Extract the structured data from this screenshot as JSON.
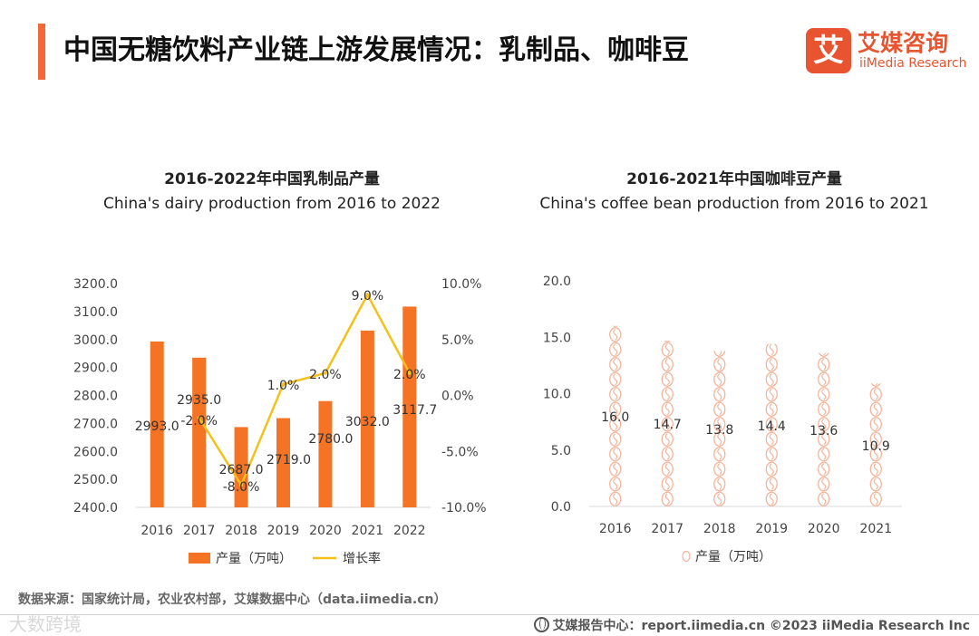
{
  "header": {
    "title": "中国无糖饮料产业链上游发展情况：乳制品、咖啡豆",
    "logo_mark": "艾",
    "logo_name_cn": "艾媒咨询",
    "logo_name_en": "iiMedia Research"
  },
  "colors": {
    "accent": "#f4693a",
    "bar": "#f47325",
    "line": "#f4c11a",
    "bean": "#f2b49a",
    "brand": "#e8542f"
  },
  "chart_data": [
    {
      "type": "bar",
      "title": "2016-2022年中国乳制品产量",
      "subtitle": "China's dairy production from 2016 to 2022",
      "categories": [
        "2016",
        "2017",
        "2018",
        "2019",
        "2020",
        "2021",
        "2022"
      ],
      "series": [
        {
          "name": "产量（万吨）",
          "type": "bar",
          "axis": "left",
          "values": [
            2993.0,
            2935.0,
            2687.0,
            2719.0,
            2780.0,
            3032.0,
            3117.7
          ],
          "labels": [
            "2993.0",
            "2935.0",
            "2687.0",
            "2719.0",
            "2780.0",
            "3032.0",
            "3117.7"
          ]
        },
        {
          "name": "增长率",
          "type": "line",
          "axis": "right",
          "values": [
            null,
            -2.0,
            -8.0,
            1.0,
            2.0,
            9.0,
            2.0
          ],
          "labels": [
            "",
            "-2.0%",
            "-8.0%",
            "1.0%",
            "2.0%",
            "9.0%",
            "2.0%"
          ]
        }
      ],
      "ylim": [
        2400,
        3200
      ],
      "y_ticks": [
        "2400.0",
        "2500.0",
        "2600.0",
        "2700.0",
        "2800.0",
        "2900.0",
        "3000.0",
        "3100.0",
        "3200.0"
      ],
      "y2lim": [
        -10,
        10
      ],
      "y2_ticks": [
        "-10.0%",
        "-5.0%",
        "0.0%",
        "5.0%",
        "10.0%"
      ],
      "legend": [
        "产量（万吨）",
        "增长率"
      ],
      "legend_position": "bottom"
    },
    {
      "type": "bar",
      "title": "2016-2021年中国咖啡豆产量",
      "subtitle": "China's coffee bean production from 2016 to 2021",
      "categories": [
        "2016",
        "2017",
        "2018",
        "2019",
        "2020",
        "2021"
      ],
      "series": [
        {
          "name": "产量（万吨）",
          "values": [
            16.0,
            14.7,
            13.8,
            14.4,
            13.6,
            10.9
          ],
          "labels": [
            "16.0",
            "14.7",
            "13.8",
            "14.4",
            "13.6",
            "10.9"
          ]
        }
      ],
      "ylim": [
        0,
        20
      ],
      "y_ticks": [
        "0.0",
        "5.0",
        "10.0",
        "15.0",
        "20.0"
      ],
      "legend": [
        "产量（万吨）"
      ],
      "legend_position": "bottom",
      "mark_style": "pictograph-coffee-bean"
    }
  ],
  "footer": {
    "source": "数据来源：国家统计局，农业农村部，艾媒数据中心（data.iimedia.cn）",
    "report_center": "艾媒报告中心：report.iimedia.cn  ©2023  iiMedia Research  Inc",
    "watermark": "大数跨境"
  }
}
